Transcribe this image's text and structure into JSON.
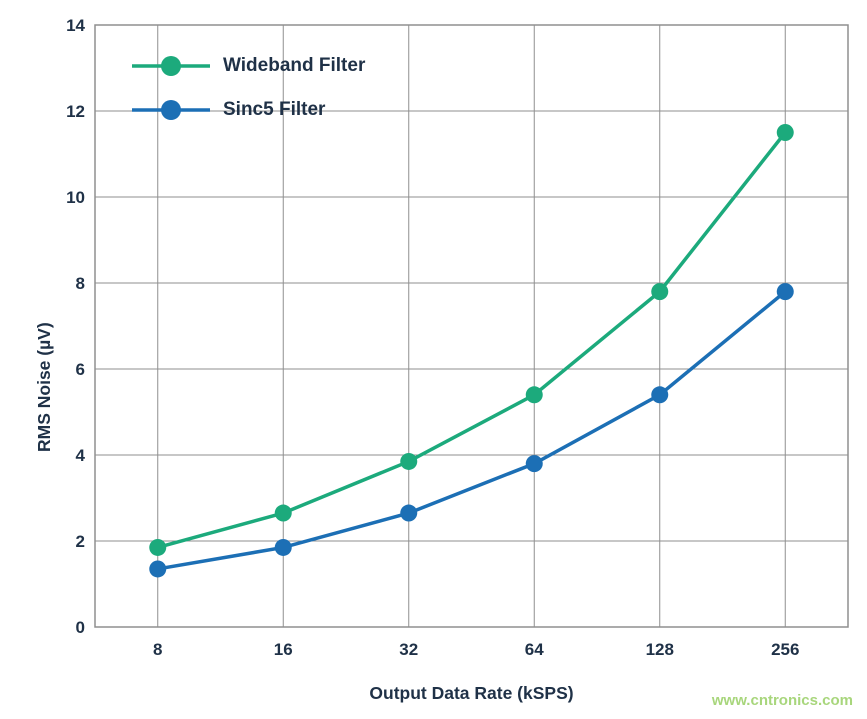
{
  "page": {
    "watermark": "www.cntronics.com"
  },
  "chart_data": {
    "type": "line",
    "categories": [
      "8",
      "16",
      "32",
      "64",
      "128",
      "256"
    ],
    "series": [
      {
        "name": "Wideband Filter",
        "color": "#1caa7c",
        "values": [
          1.85,
          2.65,
          3.85,
          5.4,
          7.8,
          11.5
        ]
      },
      {
        "name": "Sinc5 Filter",
        "color": "#1c6fb5",
        "values": [
          1.35,
          1.85,
          2.65,
          3.8,
          5.4,
          7.8
        ]
      }
    ],
    "title": "",
    "xlabel": "Output Data Rate (kSPS)",
    "ylabel": "RMS Noise (µV)",
    "ylim": [
      0,
      14
    ],
    "ytick_step": 2,
    "grid": true,
    "legend_position": "top-left",
    "grid_color": "#8f8f8f",
    "frame_color": "#8f8f8f",
    "text_color": "#1f3147"
  }
}
